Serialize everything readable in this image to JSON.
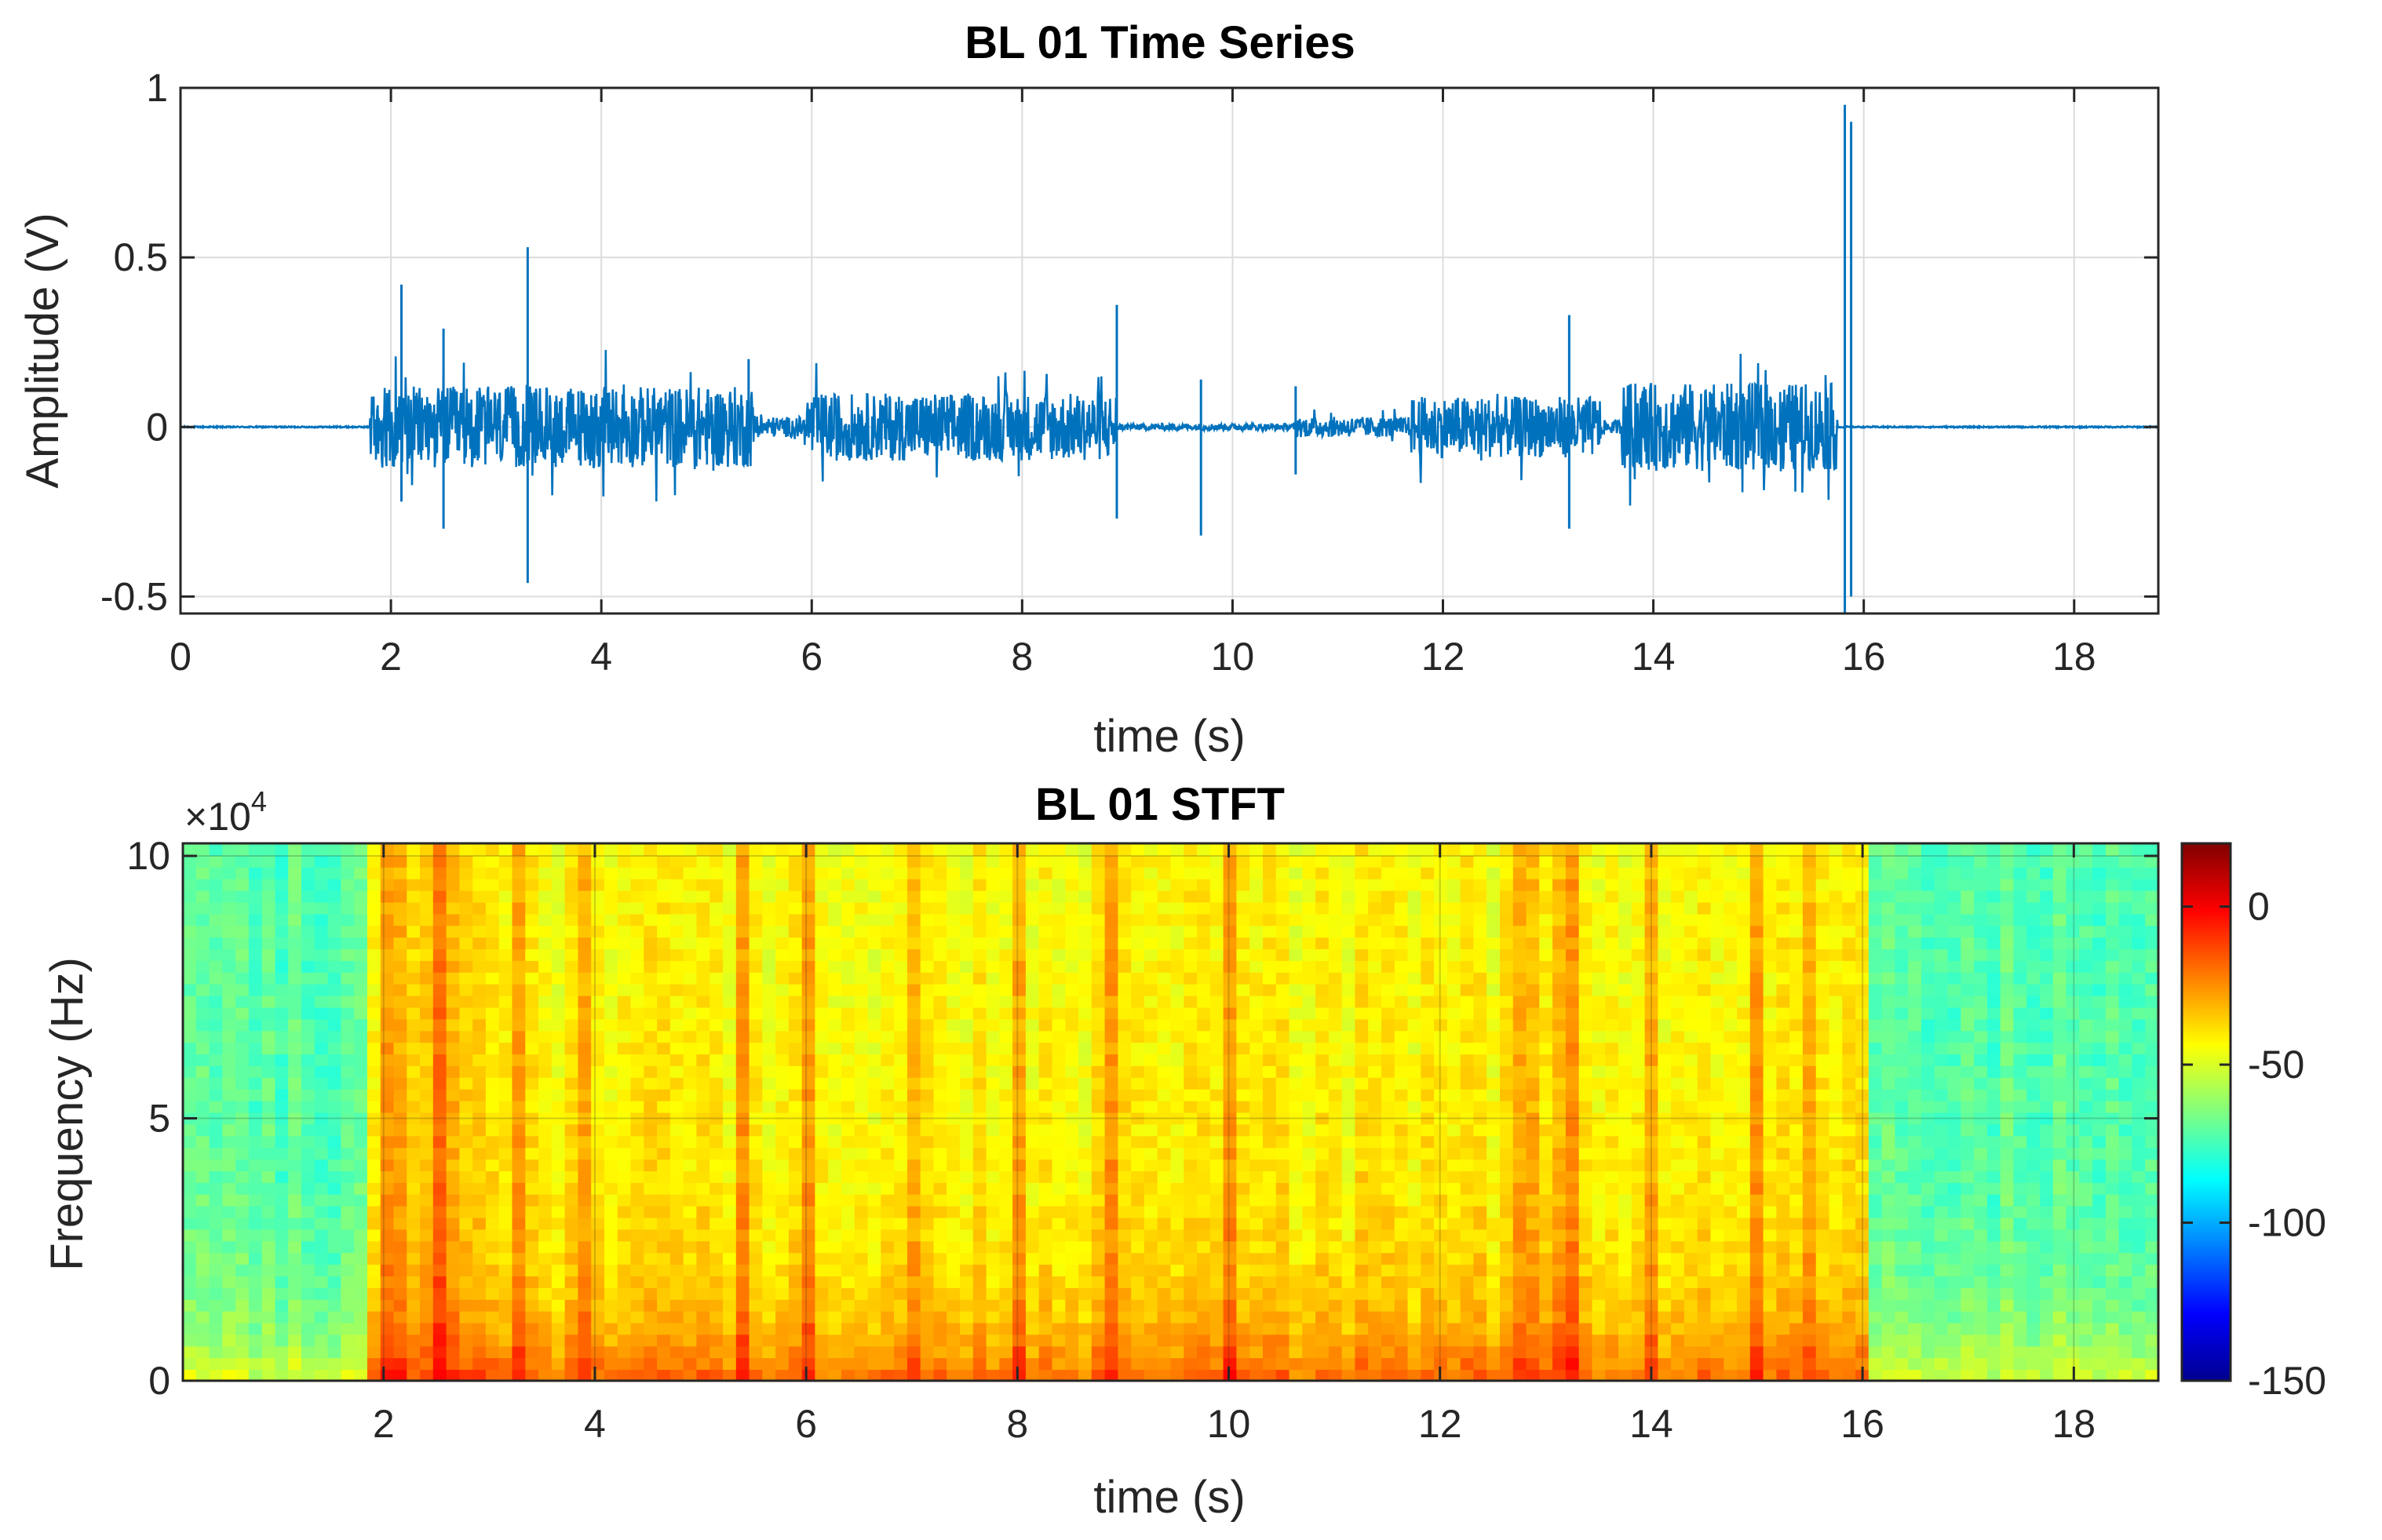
{
  "chart_data": [
    {
      "type": "line",
      "title": "BL 01 Time Series",
      "xlabel": "time (s)",
      "ylabel": "Amplitude (V)",
      "xlim": [
        0,
        18.8
      ],
      "ylim": [
        -0.55,
        1
      ],
      "xticks": [
        0,
        2,
        4,
        6,
        8,
        10,
        12,
        14,
        16,
        18
      ],
      "yticks": [
        -0.5,
        0,
        0.5,
        1
      ],
      "xtick_labels": [
        "0",
        "2",
        "4",
        "6",
        "8",
        "10",
        "12",
        "14",
        "16",
        "18"
      ],
      "ytick_labels": [
        "-0.5",
        "0",
        "0.5",
        "1"
      ],
      "grid": true,
      "series": [
        {
          "name": "BL 01",
          "color": "#0072BD",
          "activity_segments": [
            {
              "start": 1.8,
              "end": 5.45,
              "level": 0.12
            },
            {
              "start": 5.45,
              "end": 5.95,
              "level": 0.03
            },
            {
              "start": 5.95,
              "end": 8.9,
              "level": 0.1
            },
            {
              "start": 8.9,
              "end": 10.6,
              "level": 0.01
            },
            {
              "start": 10.6,
              "end": 11.7,
              "level": 0.03
            },
            {
              "start": 11.7,
              "end": 13.5,
              "level": 0.09
            },
            {
              "start": 13.5,
              "end": 13.7,
              "level": 0.02
            },
            {
              "start": 13.7,
              "end": 15.75,
              "level": 0.13
            }
          ],
          "spikes": [
            {
              "t": 2.1,
              "hi": 0.42,
              "lo": -0.22
            },
            {
              "t": 2.5,
              "hi": 0.29,
              "lo": -0.3
            },
            {
              "t": 3.3,
              "hi": 0.53,
              "lo": -0.46
            },
            {
              "t": 5.4,
              "hi": 0.2,
              "lo": -0.06
            },
            {
              "t": 8.9,
              "hi": 0.36,
              "lo": -0.27
            },
            {
              "t": 9.7,
              "hi": 0.14,
              "lo": -0.32
            },
            {
              "t": 10.6,
              "hi": 0.12,
              "lo": -0.14
            },
            {
              "t": 13.2,
              "hi": 0.33,
              "lo": -0.3
            },
            {
              "t": 15.82,
              "hi": 0.95,
              "lo": -0.55
            },
            {
              "t": 15.88,
              "hi": 0.9,
              "lo": -0.5
            }
          ]
        }
      ]
    },
    {
      "type": "heatmap",
      "title": "BL 01 STFT",
      "xlabel": "time (s)",
      "ylabel": "Frequency (Hz)",
      "xlim": [
        0.1,
        18.8
      ],
      "ylim": [
        0,
        102400
      ],
      "xticks": [
        2,
        4,
        6,
        8,
        10,
        12,
        14,
        16,
        18
      ],
      "xtick_labels": [
        "2",
        "4",
        "6",
        "8",
        "10",
        "12",
        "14",
        "16",
        "18"
      ],
      "yticks": [
        0,
        50000,
        100000
      ],
      "ytick_labels": [
        "0",
        "5",
        "10"
      ],
      "yexponent": "×10",
      "yexponent_power": "4",
      "colormap": "jet",
      "clim": [
        -150,
        20
      ],
      "colorbar_ticks": [
        0,
        -50,
        -100,
        -150
      ],
      "colorbar_tick_labels": [
        "0",
        "-50",
        "-100",
        "-150"
      ],
      "power_levels_db": {
        "quiet_0_to_1.8s": -72,
        "active_1.8_to_16s": -40,
        "quiet_16_to_18.8s": -72,
        "low_frequency_boost_db": 20
      },
      "hot_columns_s": [
        2.1,
        2.5,
        3.3,
        3.9,
        5.4,
        6.0,
        7.0,
        8.0,
        8.9,
        10.0,
        12.8,
        13.2,
        14.0,
        15.0,
        15.5
      ]
    }
  ]
}
